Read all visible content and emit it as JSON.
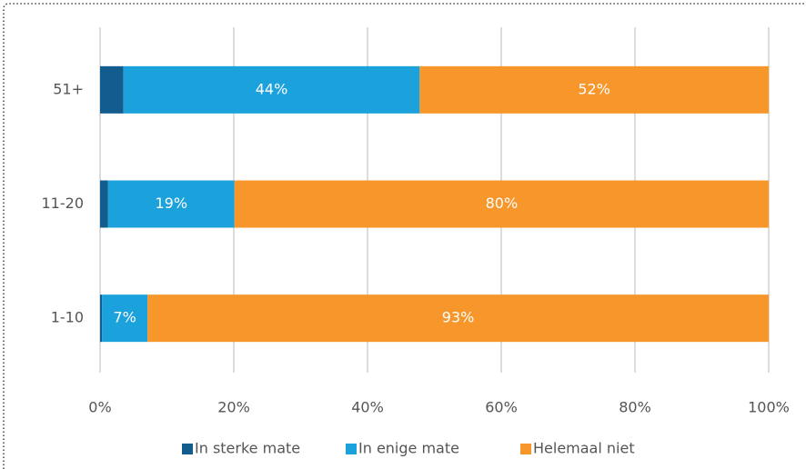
{
  "chart_data": {
    "type": "stacked-barh",
    "categories": [
      "51+",
      "11-20",
      "1-10"
    ],
    "series": [
      {
        "name": "In sterke mate",
        "color": "#135d8e",
        "values": [
          3.5,
          1.2,
          0.3
        ]
      },
      {
        "name": "In enige mate",
        "color": "#1ba1db",
        "values": [
          44.3,
          18.9,
          6.8
        ],
        "value_labels": [
          "44%",
          "19%",
          "7%"
        ]
      },
      {
        "name": "Helemaal niet",
        "color": "#f7962a",
        "values": [
          52.2,
          79.9,
          92.9
        ],
        "value_labels": [
          "52%",
          "80%",
          "93%"
        ]
      }
    ],
    "xlim": [
      0,
      100
    ],
    "xticks": [
      {
        "value": 0,
        "label": "0%"
      },
      {
        "value": 20,
        "label": "20%"
      },
      {
        "value": 40,
        "label": "40%"
      },
      {
        "value": 60,
        "label": "60%"
      },
      {
        "value": 80,
        "label": "80%"
      },
      {
        "value": 100,
        "label": "100%"
      }
    ],
    "grid": true,
    "legend": "bottom"
  }
}
